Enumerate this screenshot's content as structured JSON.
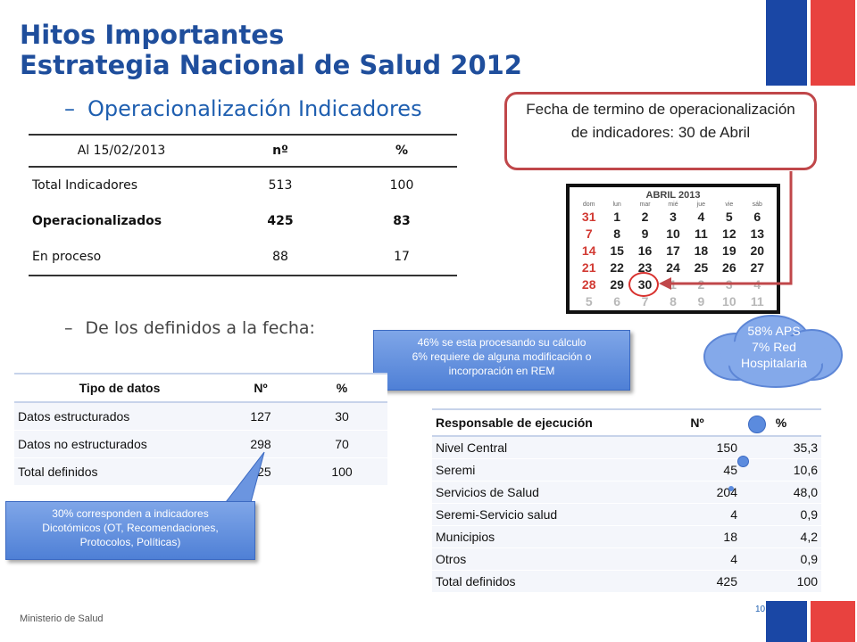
{
  "title": {
    "line1": "Hitos Importantes",
    "line2": "Estrategia Nacional de Salud 2012"
  },
  "bullets": {
    "b1_dash": "–",
    "b1": "Operacionalización Indicadores",
    "b2_dash": "–",
    "b2": "De los definidos a la fecha:"
  },
  "indicators_table": {
    "headers": [
      "Al 15/02/2013",
      "nº",
      "%"
    ],
    "rows": [
      [
        "Total Indicadores",
        "513",
        "100"
      ],
      [
        "Operacionalizados",
        "425",
        "83"
      ],
      [
        "En proceso",
        "88",
        "17"
      ]
    ]
  },
  "deadline_box": {
    "text": "Fecha de termino de operacionalización de indicadores: 30 de Abril"
  },
  "calendar": {
    "title": "ABRIL 2013",
    "weekdays": [
      "dom",
      "lun",
      "mar",
      "mié",
      "jue",
      "vie",
      "sáb"
    ],
    "weeks": [
      [
        "31",
        "1",
        "2",
        "3",
        "4",
        "5",
        "6"
      ],
      [
        "7",
        "8",
        "9",
        "10",
        "11",
        "12",
        "13"
      ],
      [
        "14",
        "15",
        "16",
        "17",
        "18",
        "19",
        "20"
      ],
      [
        "21",
        "22",
        "23",
        "24",
        "25",
        "26",
        "27"
      ],
      [
        "28",
        "29",
        "30",
        "1",
        "2",
        "3",
        "4"
      ],
      [
        "5",
        "6",
        "7",
        "8",
        "9",
        "10",
        "11"
      ]
    ]
  },
  "cloud": {
    "line1": "58% APS",
    "line2": "7% Red",
    "line3": "Hospitalaria"
  },
  "callout_top": {
    "line1": "46%  se esta procesando su cálculo",
    "line2": "6% requiere de alguna modificación o",
    "line3": "incorporación en REM"
  },
  "callout_bottom": {
    "line1": "30%  corresponden a indicadores",
    "line2": "Dicotómicos (OT, Recomendaciones,",
    "line3": "Protocolos, Políticas)"
  },
  "data_type_table": {
    "headers": [
      "Tipo de datos",
      "Nº",
      "%"
    ],
    "rows": [
      [
        "Datos estructurados",
        "127",
        "30"
      ],
      [
        "Datos no estructurados",
        "298",
        "70"
      ],
      [
        "Total definidos",
        "425",
        "100"
      ]
    ]
  },
  "responsible_table": {
    "headers": [
      "Responsable de ejecución",
      "Nº",
      "%"
    ],
    "rows": [
      [
        "Nivel Central",
        "150",
        "35,3"
      ],
      [
        "Seremi",
        "45",
        "10,6"
      ],
      [
        "Servicios de Salud",
        "204",
        "48,0"
      ],
      [
        "Seremi-Servicio salud",
        "4",
        "0,9"
      ],
      [
        "Municipios",
        "18",
        "4,2"
      ],
      [
        "Otros",
        "4",
        "0,9"
      ],
      [
        "Total definidos",
        "425",
        "100"
      ]
    ]
  },
  "footer": {
    "ministry": "Ministerio  de Salud",
    "page": "10"
  },
  "colors": {
    "title_blue": "#1f4e9c",
    "flag_blue": "#1a47a5",
    "flag_red": "#e8423f",
    "callout_blue": "#5b8bde",
    "box_border": "#c0474a"
  }
}
